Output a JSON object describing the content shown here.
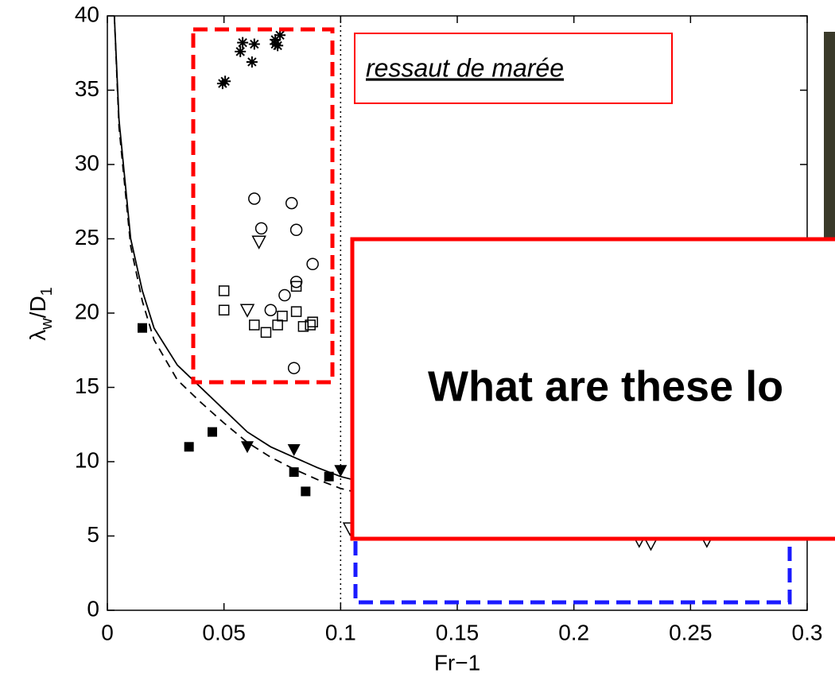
{
  "chart_data": {
    "type": "scatter",
    "xlabel": "Fr−1",
    "ylabel": {
      "symbol": "λ",
      "sub": "w",
      "middle": "/D",
      "sub2": "1"
    },
    "xlim": [
      0,
      0.3
    ],
    "ylim": [
      0,
      40
    ],
    "xticks": [
      0,
      0.05,
      0.1,
      0.15,
      0.2,
      0.25,
      0.3
    ],
    "yticks": [
      0,
      5,
      10,
      15,
      20,
      25,
      30,
      35,
      40
    ],
    "vline": 0.1,
    "series": [
      {
        "marker": "line-solid",
        "color": "#000000",
        "x": [
          0.003,
          0.005,
          0.01,
          0.015,
          0.02,
          0.03,
          0.04,
          0.05,
          0.06,
          0.07,
          0.08,
          0.09,
          0.1,
          0.105
        ],
        "values": [
          40,
          33,
          25,
          21.5,
          19,
          16.5,
          15,
          13.5,
          12,
          11,
          10.3,
          9.6,
          9.0,
          8.8
        ]
      },
      {
        "marker": "line-dashed",
        "color": "#000000",
        "x": [
          0.003,
          0.005,
          0.01,
          0.015,
          0.02,
          0.03,
          0.04,
          0.05,
          0.06,
          0.07,
          0.08,
          0.09,
          0.1,
          0.105
        ],
        "values": [
          40,
          32.5,
          24.5,
          20.8,
          18.2,
          15.5,
          14,
          12.6,
          11.3,
          10.3,
          9.5,
          8.8,
          8.2,
          8.0
        ]
      },
      {
        "marker": "filled-square",
        "color": "#000000",
        "x": [
          0.015,
          0.035,
          0.045,
          0.08,
          0.085,
          0.095
        ],
        "values": [
          19,
          11,
          12,
          9.3,
          8,
          9
        ]
      },
      {
        "marker": "filled-triangle",
        "color": "#000000",
        "x": [
          0.06,
          0.08,
          0.1
        ],
        "values": [
          11,
          10.8,
          9.4
        ]
      },
      {
        "marker": "asterisk",
        "color": "#000000",
        "x": [
          0.0494,
          0.0505,
          0.057,
          0.058,
          0.062,
          0.063,
          0.072,
          0.072,
          0.074,
          0.073
        ],
        "values": [
          35.45,
          35.6,
          37.6,
          38.2,
          36.9,
          38.1,
          38.1,
          38.4,
          38.7,
          38.0
        ]
      },
      {
        "marker": "open-circle",
        "color": "#000000",
        "x": [
          0.063,
          0.079,
          0.066,
          0.081,
          0.088,
          0.081,
          0.076,
          0.07,
          0.08
        ],
        "values": [
          27.7,
          27.4,
          25.7,
          25.6,
          23.3,
          22.1,
          21.2,
          20.2,
          16.3
        ]
      },
      {
        "marker": "open-triangle",
        "color": "#000000",
        "x": [
          0.065,
          0.06,
          0.104,
          0.228,
          0.233,
          0.257
        ],
        "values": [
          24.8,
          20.2,
          5.5,
          4.7,
          4.5,
          4.7
        ]
      },
      {
        "marker": "open-square",
        "color": "#000000",
        "x": [
          0.05,
          0.05,
          0.063,
          0.068,
          0.073,
          0.075,
          0.081,
          0.081,
          0.084,
          0.087,
          0.088
        ],
        "values": [
          21.5,
          20.2,
          19.2,
          18.7,
          19.2,
          19.8,
          20.1,
          21.8,
          19.1,
          19.2,
          19.4
        ]
      }
    ]
  },
  "annotations": {
    "region_label": "ressaut de marée",
    "question": "What are these lo"
  }
}
